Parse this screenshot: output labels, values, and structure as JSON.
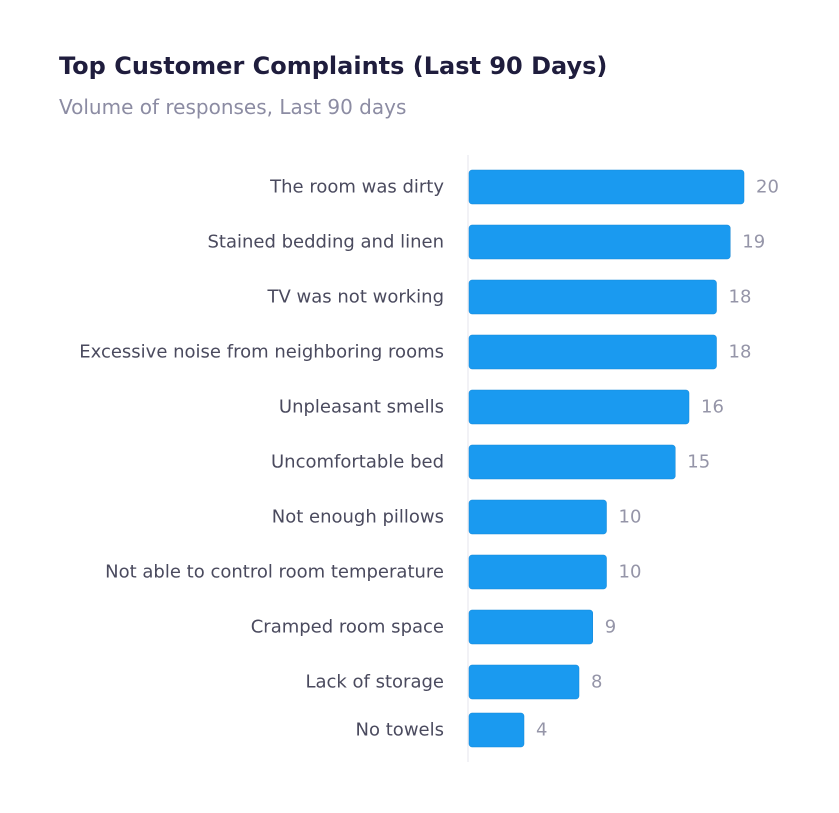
{
  "chart_data": {
    "type": "bar",
    "orientation": "horizontal",
    "title": "Top Customer Complaints (Last 90 Days)",
    "subtitle": "Volume of responses, Last 90 days",
    "categories": [
      "The room was dirty",
      "Stained bedding and linen",
      "TV was not working",
      "Excessive noise from neighboring rooms",
      "Unpleasant smells",
      "Uncomfortable bed",
      "Not enough pillows",
      "Not able to control room temperature",
      "Cramped room space",
      "Lack of storage",
      "No towels"
    ],
    "values": [
      20,
      19,
      18,
      18,
      16,
      15,
      10,
      10,
      9,
      8,
      4
    ],
    "xlim": [
      0,
      20
    ],
    "grid": false,
    "legend": "none",
    "data_labels": true
  },
  "colors": {
    "bar": "#1a9af0",
    "bar_edge": "#1587d6",
    "axis": "#e4e4ec",
    "title": "#1f1d3d",
    "subtitle": "#8c8ca3",
    "category_label": "#4a4a5e",
    "value_label": "#9595a8"
  }
}
